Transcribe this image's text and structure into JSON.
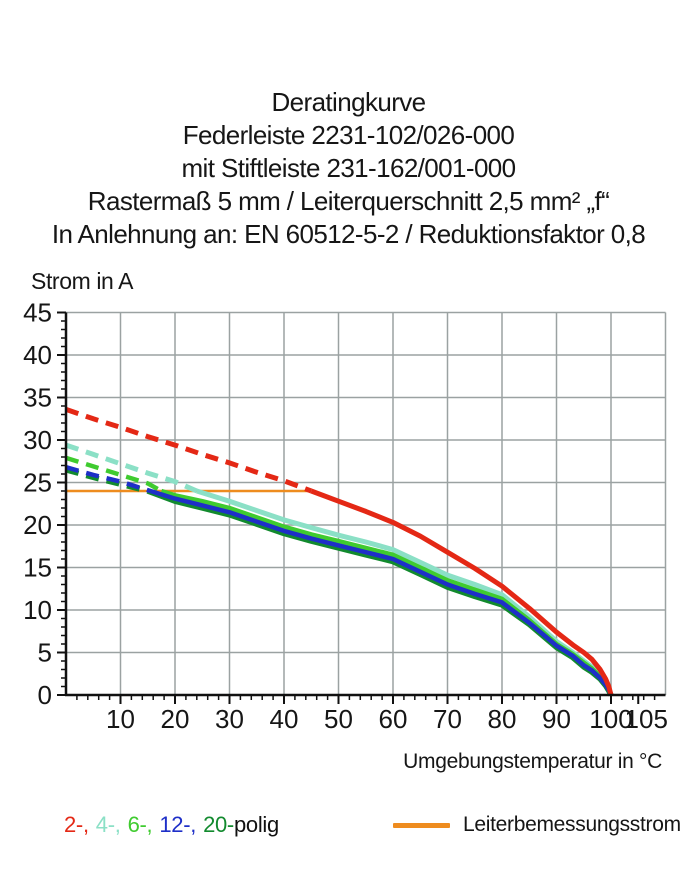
{
  "header": {
    "lines": [
      "Deratingkurve",
      "Federleiste 2231-102/026-000",
      "mit Stiftleiste 231-162/001-000",
      "Rastermaß 5 mm / Leiterquerschnitt 2,5 mm² „f“",
      "In Anlehnung an: EN 60512-5-2 / Reduktionsfaktor 0,8"
    ]
  },
  "chart_data": {
    "type": "line",
    "title": "Deratingkurve",
    "xlabel": "Umgebungstemperatur in °C",
    "ylabel": "Strom in A",
    "xlim": [
      0,
      110
    ],
    "ylim": [
      0,
      45
    ],
    "x_ticks": [
      10,
      20,
      30,
      40,
      50,
      60,
      70,
      80,
      90,
      100,
      105
    ],
    "y_ticks": [
      0,
      5,
      10,
      15,
      20,
      25,
      30,
      35,
      40,
      45
    ],
    "x_minor_step": 2,
    "y_minor_step": 1,
    "grid": true,
    "grid_color": "#9ba2a2",
    "axis_color": "#111111",
    "note": "dashed portion of each curve lies above the 24 A conductor rating line; dash_until gives the temperature where the curve becomes solid",
    "series": [
      {
        "name": "4-polig",
        "color": "#8be0c6",
        "width": 5,
        "dash_until": 24,
        "points": [
          [
            0,
            29.4
          ],
          [
            5,
            28.3
          ],
          [
            10,
            27.2
          ],
          [
            15,
            26.1
          ],
          [
            20,
            25.1
          ],
          [
            24,
            24
          ],
          [
            30,
            22.8
          ],
          [
            35,
            21.7
          ],
          [
            40,
            20.6
          ],
          [
            45,
            19.7
          ],
          [
            50,
            18.8
          ],
          [
            55,
            18.0
          ],
          [
            60,
            17.1
          ],
          [
            65,
            15.6
          ],
          [
            70,
            14.1
          ],
          [
            75,
            13.0
          ],
          [
            80,
            11.8
          ],
          [
            85,
            9.2
          ],
          [
            90,
            6.3
          ],
          [
            93,
            5.0
          ],
          [
            95,
            4.0
          ],
          [
            96.5,
            3.3
          ],
          [
            98,
            2.3
          ],
          [
            99,
            1.4
          ],
          [
            99.6,
            0.7
          ],
          [
            100,
            0
          ]
        ]
      },
      {
        "name": "6-polig",
        "color": "#3fcb2f",
        "width": 4.5,
        "dash_until": 17.5,
        "points": [
          [
            0,
            27.9
          ],
          [
            5,
            26.9
          ],
          [
            10,
            25.9
          ],
          [
            15,
            24.9
          ],
          [
            17.5,
            24
          ],
          [
            20,
            23.5
          ],
          [
            25,
            22.8
          ],
          [
            30,
            22.0
          ],
          [
            35,
            20.9
          ],
          [
            40,
            19.8
          ],
          [
            45,
            18.9
          ],
          [
            50,
            18.1
          ],
          [
            55,
            17.3
          ],
          [
            60,
            16.5
          ],
          [
            65,
            15.0
          ],
          [
            70,
            13.5
          ],
          [
            75,
            12.4
          ],
          [
            80,
            11.3
          ],
          [
            85,
            8.8
          ],
          [
            90,
            6.0
          ],
          [
            93,
            4.8
          ],
          [
            95,
            3.8
          ],
          [
            96.5,
            3.1
          ],
          [
            98,
            2.2
          ],
          [
            99,
            1.3
          ],
          [
            99.6,
            0.6
          ],
          [
            100,
            0
          ]
        ]
      },
      {
        "name": "20-polig",
        "color": "#128a2e",
        "width": 5.5,
        "dash_until": 15,
        "points": [
          [
            0,
            26.5
          ],
          [
            5,
            25.6
          ],
          [
            10,
            24.8
          ],
          [
            15,
            24
          ],
          [
            20,
            22.8
          ],
          [
            25,
            22.0
          ],
          [
            30,
            21.2
          ],
          [
            35,
            20.1
          ],
          [
            40,
            19.0
          ],
          [
            45,
            18.1
          ],
          [
            50,
            17.3
          ],
          [
            55,
            16.5
          ],
          [
            60,
            15.7
          ],
          [
            65,
            14.2
          ],
          [
            70,
            12.7
          ],
          [
            75,
            11.6
          ],
          [
            80,
            10.6
          ],
          [
            85,
            8.3
          ],
          [
            90,
            5.6
          ],
          [
            93,
            4.4
          ],
          [
            95,
            3.3
          ],
          [
            96.5,
            2.7
          ],
          [
            98,
            1.9
          ],
          [
            99,
            1.1
          ],
          [
            99.6,
            0.5
          ],
          [
            100,
            0
          ]
        ]
      },
      {
        "name": "12-polig",
        "color": "#1e2fc8",
        "width": 4.5,
        "dash_until": 15.5,
        "points": [
          [
            0,
            26.8
          ],
          [
            5,
            25.9
          ],
          [
            10,
            25.1
          ],
          [
            15.5,
            24
          ],
          [
            20,
            23.1
          ],
          [
            25,
            22.3
          ],
          [
            30,
            21.5
          ],
          [
            35,
            20.4
          ],
          [
            40,
            19.3
          ],
          [
            45,
            18.4
          ],
          [
            50,
            17.6
          ],
          [
            55,
            16.8
          ],
          [
            60,
            16.0
          ],
          [
            65,
            14.5
          ],
          [
            70,
            13.0
          ],
          [
            75,
            11.9
          ],
          [
            80,
            10.9
          ],
          [
            85,
            8.5
          ],
          [
            90,
            5.8
          ],
          [
            93,
            4.6
          ],
          [
            95,
            3.5
          ],
          [
            96.5,
            2.9
          ],
          [
            98,
            2.0
          ],
          [
            99,
            1.2
          ],
          [
            99.6,
            0.6
          ],
          [
            100,
            0
          ]
        ]
      },
      {
        "name": "2-polig",
        "color": "#e42815",
        "width": 5,
        "dash_until": 45,
        "points": [
          [
            0,
            33.6
          ],
          [
            5,
            32.5
          ],
          [
            10,
            31.5
          ],
          [
            15,
            30.4
          ],
          [
            20,
            29.4
          ],
          [
            25,
            28.3
          ],
          [
            30,
            27.3
          ],
          [
            35,
            26.2
          ],
          [
            40,
            25.2
          ],
          [
            45,
            24
          ],
          [
            50,
            22.8
          ],
          [
            55,
            21.6
          ],
          [
            60,
            20.3
          ],
          [
            65,
            18.7
          ],
          [
            70,
            16.8
          ],
          [
            75,
            14.9
          ],
          [
            80,
            12.8
          ],
          [
            85,
            10.2
          ],
          [
            90,
            7.4
          ],
          [
            93,
            5.9
          ],
          [
            95,
            5.0
          ],
          [
            96.5,
            4.2
          ],
          [
            98,
            3.0
          ],
          [
            99,
            1.9
          ],
          [
            99.6,
            1.0
          ],
          [
            100,
            0
          ]
        ]
      }
    ],
    "reference_line": {
      "label": "Leiterbemessungsstrom",
      "color": "#ee8c1f",
      "y": 24,
      "x_from": 0,
      "x_to": 44.5
    }
  },
  "axis_labels": {
    "y": "Strom in A",
    "x": "Umgebungstemperatur in °C"
  },
  "legend": {
    "pole_items": [
      {
        "label": "2-,",
        "color": "#e42815"
      },
      {
        "label": "4-,",
        "color": "#8be0c6"
      },
      {
        "label": "6-,",
        "color": "#3fcb2f"
      },
      {
        "label": "12-,",
        "color": "#1e2fc8"
      },
      {
        "label": "20-",
        "color": "#128a2e"
      }
    ],
    "suffix": "polig",
    "reference_label": "Leiterbemessungsstrom",
    "reference_color": "#ee8c1f"
  }
}
